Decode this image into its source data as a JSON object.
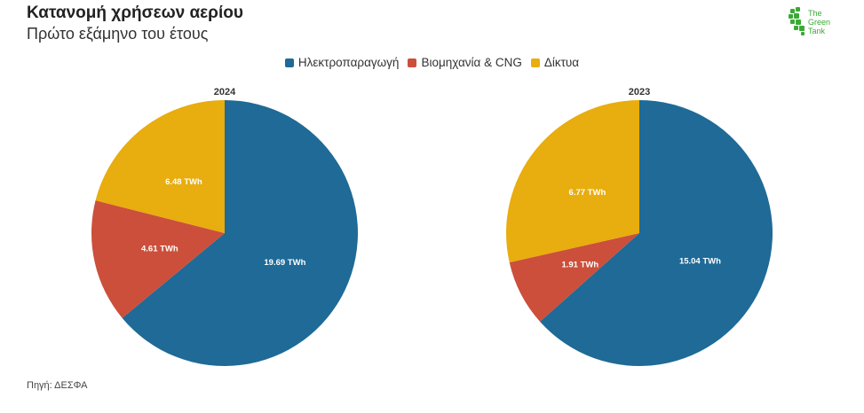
{
  "header": {
    "title": "Κατανομή χρήσεων αερίου",
    "subtitle": "Πρώτο εξάμηνο του έτους"
  },
  "logo": {
    "line1": "The",
    "line2": "Green",
    "line3": "Tank",
    "icon": "green-tank-logo-icon"
  },
  "source": "Πηγή: ΔΕΣΦΑ",
  "colors": {
    "Ηλεκτροπαραγωγή": "#1f6a96",
    "Βιομηχανία & CNG": "#cc4f3b",
    "Δίκτυα": "#e8ad0e"
  },
  "legend": [
    "Ηλεκτροπαραγωγή",
    "Βιομηχανία & CNG",
    "Δίκτυα"
  ],
  "chart_data": [
    {
      "type": "pie",
      "title": "2024",
      "unit": "TWh",
      "slices": [
        {
          "name": "Ηλεκτροπαραγωγή",
          "value": 19.69,
          "label": "19.69 TWh"
        },
        {
          "name": "Βιομηχανία & CNG",
          "value": 4.61,
          "label": "4.61 TWh"
        },
        {
          "name": "Δίκτυα",
          "value": 6.48,
          "label": "6.48 TWh"
        }
      ]
    },
    {
      "type": "pie",
      "title": "2023",
      "unit": "TWh",
      "slices": [
        {
          "name": "Ηλεκτροπαραγωγή",
          "value": 15.04,
          "label": "15.04 TWh"
        },
        {
          "name": "Βιομηχανία & CNG",
          "value": 1.91,
          "label": "1.91 TWh"
        },
        {
          "name": "Δίκτυα",
          "value": 6.77,
          "label": "6.77 TWh"
        }
      ]
    }
  ]
}
